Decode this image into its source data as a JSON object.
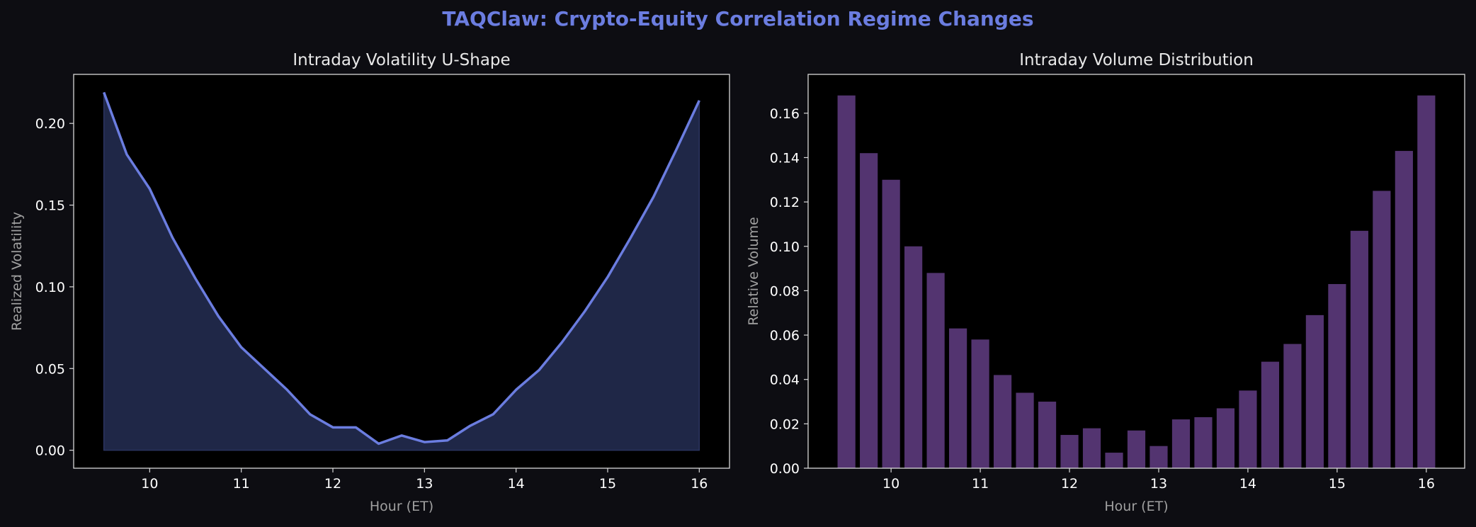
{
  "suptitle": "TAQClaw: Crypto-Equity Correlation Regime Changes",
  "colors": {
    "background": "#0d0d12",
    "plot_bg": "#000000",
    "title": "#6b7de0",
    "line": "#6b7de0",
    "fill": "#1f2747",
    "bar": "#533470",
    "text": "#ffffff",
    "axis_label": "#a0a0a0"
  },
  "chart_data": [
    {
      "type": "area",
      "title": "Intraday Volatility U-Shape",
      "xlabel": "Hour (ET)",
      "ylabel": "Realized Volatility",
      "xlim": [
        9.17,
        16.33
      ],
      "ylim": [
        -0.011,
        0.23
      ],
      "xticks": [
        10,
        11,
        12,
        13,
        14,
        15,
        16
      ],
      "yticks": [
        0.0,
        0.05,
        0.1,
        0.15,
        0.2
      ],
      "ytick_labels": [
        "0.00",
        "0.05",
        "0.10",
        "0.15",
        "0.20"
      ],
      "grid": false,
      "x": [
        9.5,
        9.75,
        10.0,
        10.25,
        10.5,
        10.75,
        11.0,
        11.25,
        11.5,
        11.75,
        12.0,
        12.25,
        12.5,
        12.75,
        13.0,
        13.25,
        13.5,
        13.75,
        14.0,
        14.25,
        14.5,
        14.75,
        15.0,
        15.25,
        15.5,
        15.75,
        16.0
      ],
      "y": [
        0.219,
        0.181,
        0.16,
        0.13,
        0.105,
        0.082,
        0.063,
        0.05,
        0.037,
        0.022,
        0.014,
        0.014,
        0.004,
        0.009,
        0.005,
        0.006,
        0.015,
        0.022,
        0.037,
        0.049,
        0.066,
        0.085,
        0.106,
        0.13,
        0.155,
        0.184,
        0.214
      ]
    },
    {
      "type": "bar",
      "title": "Intraday Volume Distribution",
      "xlabel": "Hour (ET)",
      "ylabel": "Relative Volume",
      "xlim": [
        9.07,
        16.43
      ],
      "ylim": [
        0,
        0.1775
      ],
      "xticks": [
        10,
        11,
        12,
        13,
        14,
        15,
        16
      ],
      "yticks": [
        0.0,
        0.02,
        0.04,
        0.06,
        0.08,
        0.1,
        0.12,
        0.14,
        0.16
      ],
      "ytick_labels": [
        "0.00",
        "0.02",
        "0.04",
        "0.06",
        "0.08",
        "0.10",
        "0.12",
        "0.14",
        "0.16"
      ],
      "grid": false,
      "x": [
        9.5,
        9.75,
        10.0,
        10.25,
        10.5,
        10.75,
        11.0,
        11.25,
        11.5,
        11.75,
        12.0,
        12.25,
        12.5,
        12.75,
        13.0,
        13.25,
        13.5,
        13.75,
        14.0,
        14.25,
        14.5,
        14.75,
        15.0,
        15.25,
        15.5,
        15.75,
        16.0
      ],
      "values": [
        0.168,
        0.142,
        0.13,
        0.1,
        0.088,
        0.063,
        0.058,
        0.042,
        0.034,
        0.03,
        0.015,
        0.018,
        0.007,
        0.017,
        0.01,
        0.022,
        0.023,
        0.027,
        0.035,
        0.048,
        0.056,
        0.069,
        0.083,
        0.107,
        0.125,
        0.143,
        0.168
      ],
      "bar_width": 0.2
    }
  ]
}
